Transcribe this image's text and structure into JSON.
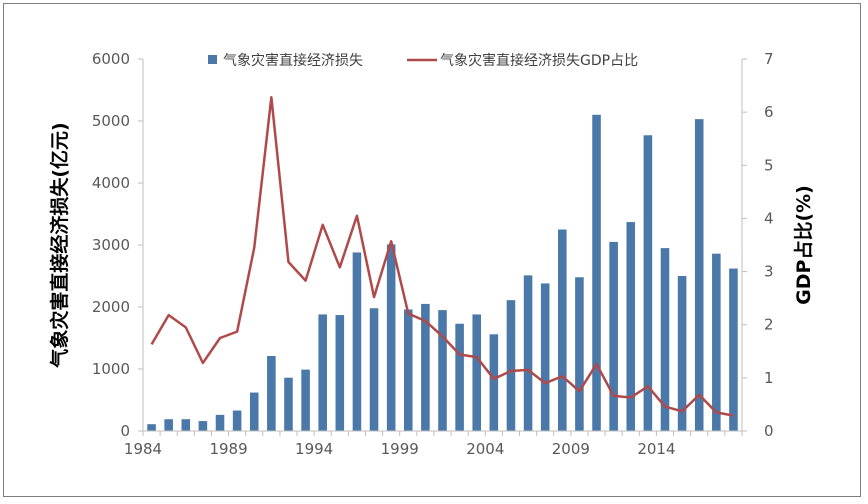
{
  "chart_data": {
    "type": "bar+line",
    "title": "",
    "ylabel_left": "气象灾害直接经济损失(亿元)",
    "ylabel_right": "GDP占比(%)",
    "xlabel": "",
    "ylim_left": [
      0,
      6000
    ],
    "ylim_right": [
      0,
      7
    ],
    "yticks_left": [
      "0",
      "1000",
      "2000",
      "3000",
      "4000",
      "5000",
      "6000"
    ],
    "yticks_right": [
      "0",
      "1",
      "2",
      "3",
      "4",
      "5",
      "6",
      "7"
    ],
    "xticks": [
      "1984",
      "1989",
      "1994",
      "1999",
      "2004",
      "2009",
      "2014"
    ],
    "legend_position": "top",
    "grid": false,
    "bar_color": "#4a78a8",
    "line_color": "#b04a4a",
    "series": [
      {
        "name": "气象灾害直接经济损失",
        "type": "bar",
        "axis": "left",
        "x": [
          1984,
          1985,
          1986,
          1987,
          1988,
          1989,
          1990,
          1991,
          1992,
          1993,
          1994,
          1995,
          1996,
          1997,
          1998,
          1999,
          2000,
          2001,
          2002,
          2003,
          2004,
          2005,
          2006,
          2007,
          2008,
          2009,
          2010,
          2011,
          2012,
          2013,
          2014,
          2015,
          2016,
          2017,
          2018
        ],
        "values": [
          110,
          190,
          190,
          160,
          260,
          330,
          620,
          1210,
          860,
          990,
          1880,
          1870,
          2880,
          1980,
          3010,
          1960,
          2050,
          1950,
          1730,
          1880,
          1560,
          2110,
          2510,
          2380,
          3250,
          2480,
          5100,
          3050,
          3370,
          4770,
          2950,
          2500,
          5030,
          2860,
          2620
        ]
      },
      {
        "name": "气象灾害直接经济损失GDP占比",
        "type": "line",
        "axis": "right",
        "x": [
          1984,
          1985,
          1986,
          1987,
          1988,
          1989,
          1990,
          1991,
          1992,
          1993,
          1994,
          1995,
          1996,
          1997,
          1998,
          1999,
          2000,
          2001,
          2002,
          2003,
          2004,
          2005,
          2006,
          2007,
          2008,
          2009,
          2010,
          2011,
          2012,
          2013,
          2014,
          2015,
          2016,
          2017,
          2018
        ],
        "values": [
          1.63,
          2.18,
          1.95,
          1.28,
          1.75,
          1.87,
          3.45,
          6.28,
          3.18,
          2.83,
          3.88,
          3.08,
          4.05,
          2.52,
          3.57,
          2.21,
          2.07,
          1.78,
          1.44,
          1.39,
          0.98,
          1.13,
          1.15,
          0.9,
          1.03,
          0.75,
          1.26,
          0.66,
          0.63,
          0.84,
          0.46,
          0.37,
          0.68,
          0.35,
          0.29
        ]
      }
    ]
  }
}
